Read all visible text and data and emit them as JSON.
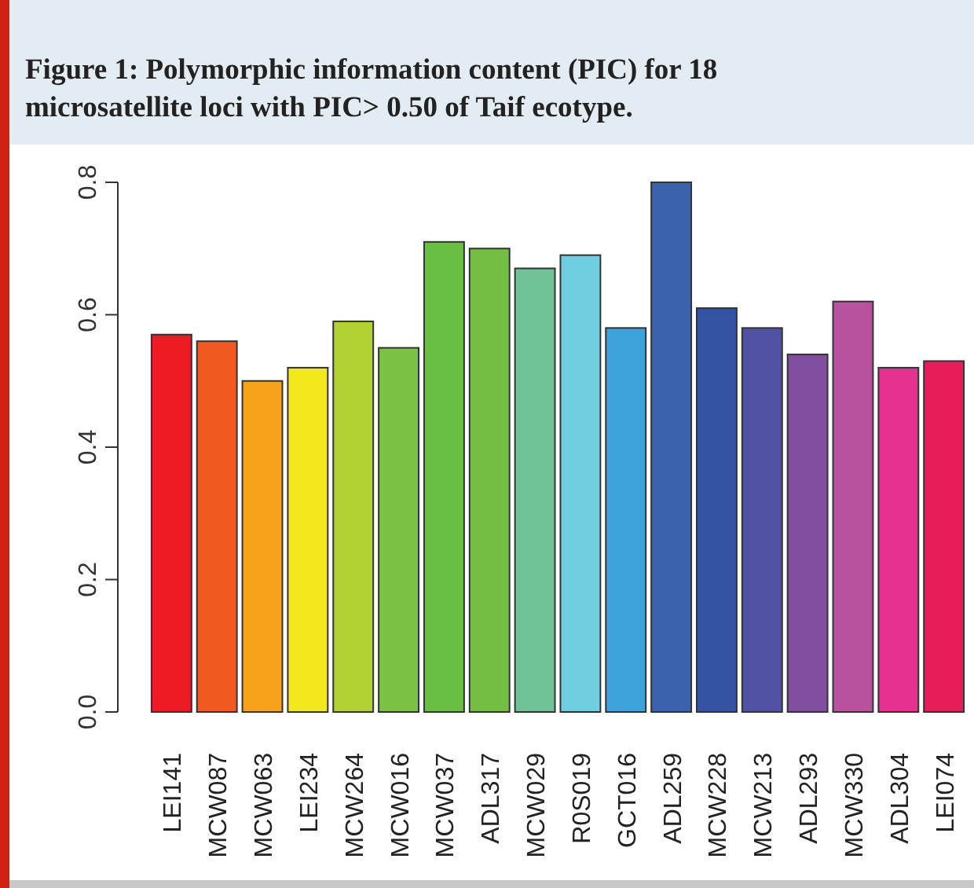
{
  "chart_data": {
    "type": "bar",
    "title": "Figure 1: Polymorphic information content (PIC) for 18 microsatellite loci with PIC> 0.50 of Taif  ecotype.",
    "categories": [
      "LEI141",
      "MCW087",
      "MCW063",
      "LEI234",
      "MCW264",
      "MCW016",
      "MCW037",
      "ADL317",
      "MCW029",
      "R0S019",
      "GCT016",
      "ADL259",
      "MCW228",
      "MCW213",
      "ADL293",
      "MCW330",
      "ADL304",
      "LEI074"
    ],
    "values": [
      0.57,
      0.56,
      0.5,
      0.52,
      0.59,
      0.55,
      0.71,
      0.7,
      0.67,
      0.69,
      0.58,
      0.8,
      0.61,
      0.58,
      0.54,
      0.62,
      0.52,
      0.53
    ],
    "colors": [
      "#ed1c24",
      "#f05a22",
      "#f7a21b",
      "#f2e81a",
      "#b2d234",
      "#7bc143",
      "#6abf45",
      "#72bf44",
      "#6fc397",
      "#6fcfe0",
      "#3ea2db",
      "#3b62ad",
      "#3352a3",
      "#5152a3",
      "#824ea0",
      "#b9529e",
      "#e6318f",
      "#e91c5a"
    ],
    "ylim": [
      0,
      0.8
    ],
    "yticks": [
      {
        "value": 0,
        "label": "0.0"
      },
      0.2,
      0.4,
      0.6,
      0.8
    ],
    "grid": false
  }
}
